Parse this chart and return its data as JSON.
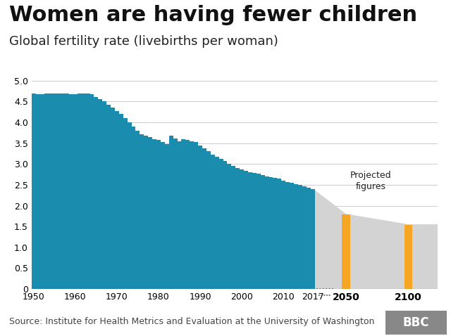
{
  "title": "Women are having fewer children",
  "subtitle": "Global fertility rate (livebirths per woman)",
  "source": "Source: Institute for Health Metrics and Evaluation at the University of Washington",
  "years": [
    1950,
    1951,
    1952,
    1953,
    1954,
    1955,
    1956,
    1957,
    1958,
    1959,
    1960,
    1961,
    1962,
    1963,
    1964,
    1965,
    1966,
    1967,
    1968,
    1969,
    1970,
    1971,
    1972,
    1973,
    1974,
    1975,
    1976,
    1977,
    1978,
    1979,
    1980,
    1981,
    1982,
    1983,
    1984,
    1985,
    1986,
    1987,
    1988,
    1989,
    1990,
    1991,
    1992,
    1993,
    1994,
    1995,
    1996,
    1997,
    1998,
    1999,
    2000,
    2001,
    2002,
    2003,
    2004,
    2005,
    2006,
    2007,
    2008,
    2009,
    2010,
    2011,
    2012,
    2013,
    2014,
    2015,
    2016,
    2017
  ],
  "values": [
    4.7,
    4.68,
    4.67,
    4.69,
    4.7,
    4.7,
    4.7,
    4.7,
    4.7,
    4.68,
    4.68,
    4.69,
    4.7,
    4.7,
    4.68,
    4.6,
    4.55,
    4.5,
    4.42,
    4.35,
    4.27,
    4.2,
    4.1,
    4.0,
    3.9,
    3.8,
    3.72,
    3.68,
    3.65,
    3.6,
    3.58,
    3.52,
    3.48,
    3.68,
    3.62,
    3.55,
    3.6,
    3.57,
    3.55,
    3.52,
    3.45,
    3.38,
    3.3,
    3.22,
    3.18,
    3.12,
    3.07,
    3.0,
    2.95,
    2.9,
    2.87,
    2.83,
    2.8,
    2.78,
    2.76,
    2.73,
    2.7,
    2.68,
    2.67,
    2.65,
    2.6,
    2.57,
    2.55,
    2.52,
    2.5,
    2.47,
    2.43,
    2.4
  ],
  "bar_color": "#1a8cad",
  "projected_years": [
    2050,
    2100
  ],
  "projected_values": [
    1.79,
    1.54
  ],
  "projected_bar_color": "#f5a623",
  "projected_shade_color": "#d3d3d3",
  "projected_annotation": "Projected\nfigures",
  "ylim": [
    0,
    5.0
  ],
  "yticks": [
    0.0,
    0.5,
    1.0,
    1.5,
    2.0,
    2.5,
    3.0,
    3.5,
    4.0,
    4.5,
    5.0
  ],
  "bg_color": "#ffffff",
  "grid_color": "#cccccc",
  "title_fontsize": 22,
  "subtitle_fontsize": 13,
  "source_fontsize": 9
}
